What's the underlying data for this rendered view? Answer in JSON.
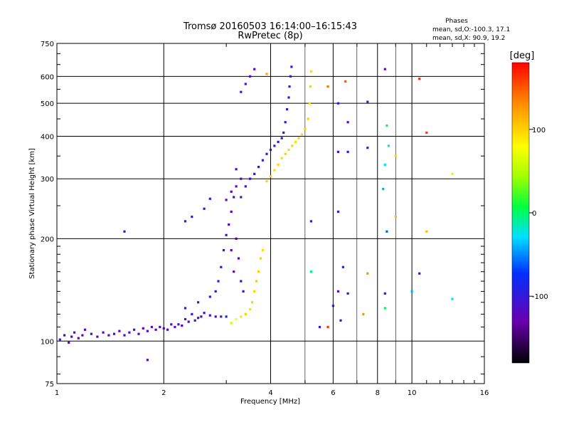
{
  "chart_data": {
    "type": "scatter",
    "title": "Tromsø 20160503 16:14:00–16:15:43",
    "subtitle": "RwPretec (8p)",
    "xlabel": "Frequency [MHz]",
    "ylabel": "Stationary phase Virtual Height [km]",
    "x_scale": "log",
    "y_scale": "log",
    "xlim": [
      1,
      16
    ],
    "ylim": [
      75,
      750
    ],
    "x_ticks": [
      1,
      2,
      4,
      6,
      8,
      10,
      16
    ],
    "x_tick_labels": [
      "1",
      "2",
      "4",
      "6",
      "8",
      "10",
      "16"
    ],
    "y_ticks": [
      75,
      100,
      200,
      300,
      400,
      500,
      600,
      750
    ],
    "y_tick_labels": [
      "75",
      "100",
      "200",
      "300",
      "400",
      "500",
      "600",
      "750"
    ],
    "grid": true,
    "legend": {
      "title": "Phases",
      "lines": [
        "mean, sd,O:-100.3, 17.1",
        "mean, sd,X: 90.9, 19.2"
      ],
      "placement": "top-right"
    },
    "colorbar": {
      "label": "[deg]",
      "range": [
        -180,
        180
      ],
      "ticks": [
        100,
        0,
        -100
      ],
      "tick_labels": [
        "100",
        "0",
        "-100"
      ]
    },
    "series": [
      {
        "name": "O",
        "mean_phase": -100.3,
        "points": [
          [
            1.02,
            101,
            -110
          ],
          [
            1.05,
            104,
            -120
          ],
          [
            1.08,
            99,
            -115
          ],
          [
            1.1,
            103,
            -125
          ],
          [
            1.12,
            106,
            -110
          ],
          [
            1.15,
            102,
            -130
          ],
          [
            1.18,
            104,
            -118
          ],
          [
            1.2,
            108,
            -120
          ],
          [
            1.25,
            105,
            -105
          ],
          [
            1.3,
            103,
            -122
          ],
          [
            1.35,
            106,
            -118
          ],
          [
            1.4,
            104,
            -120
          ],
          [
            1.45,
            105,
            -108
          ],
          [
            1.5,
            107,
            -125
          ],
          [
            1.55,
            104,
            -115
          ],
          [
            1.6,
            106,
            -120
          ],
          [
            1.65,
            108,
            -112
          ],
          [
            1.7,
            105,
            -122
          ],
          [
            1.75,
            109,
            -118
          ],
          [
            1.8,
            107,
            -100
          ],
          [
            1.85,
            110,
            -110
          ],
          [
            1.9,
            108,
            -120
          ],
          [
            1.95,
            110,
            -118
          ],
          [
            2.0,
            109,
            -125
          ],
          [
            2.05,
            108,
            -110
          ],
          [
            2.1,
            112,
            -105
          ],
          [
            2.15,
            110,
            -118
          ],
          [
            2.2,
            112,
            -100
          ],
          [
            2.25,
            111,
            -122
          ],
          [
            2.3,
            116,
            -110
          ],
          [
            2.35,
            114,
            -115
          ],
          [
            2.4,
            120,
            -95
          ],
          [
            2.45,
            115,
            -110
          ],
          [
            2.5,
            117,
            -105
          ],
          [
            2.55,
            118,
            -120
          ],
          [
            2.6,
            121,
            -100
          ],
          [
            2.7,
            119,
            -110
          ],
          [
            2.8,
            118,
            -105
          ],
          [
            2.9,
            118,
            -95
          ],
          [
            3.0,
            118,
            -90
          ],
          [
            2.3,
            125,
            -100
          ],
          [
            2.5,
            130,
            -95
          ],
          [
            2.7,
            135,
            -100
          ],
          [
            2.8,
            140,
            -105
          ],
          [
            2.85,
            150,
            -100
          ],
          [
            2.9,
            165,
            -95
          ],
          [
            2.95,
            185,
            -105
          ],
          [
            3.0,
            205,
            -115
          ],
          [
            3.05,
            220,
            -125
          ],
          [
            3.1,
            185,
            -120
          ],
          [
            3.15,
            160,
            -130
          ],
          [
            3.2,
            200,
            -135
          ],
          [
            3.25,
            175,
            -125
          ],
          [
            3.3,
            150,
            -110
          ],
          [
            3.35,
            140,
            -115
          ],
          [
            3.1,
            240,
            -120
          ],
          [
            3.0,
            260,
            -115
          ],
          [
            3.1,
            275,
            -120
          ],
          [
            3.2,
            285,
            -125
          ],
          [
            3.3,
            300,
            -120
          ],
          [
            3.2,
            320,
            -115
          ],
          [
            3.15,
            265,
            -118
          ],
          [
            3.3,
            265,
            -110
          ],
          [
            3.4,
            285,
            -110
          ],
          [
            3.5,
            300,
            -108
          ],
          [
            3.6,
            310,
            -105
          ],
          [
            3.7,
            325,
            -110
          ],
          [
            3.8,
            340,
            -105
          ],
          [
            3.9,
            355,
            -100
          ],
          [
            4.0,
            365,
            -105
          ],
          [
            4.1,
            375,
            -100
          ],
          [
            4.2,
            385,
            -95
          ],
          [
            4.3,
            395,
            -100
          ],
          [
            4.35,
            410,
            -105
          ],
          [
            4.4,
            440,
            -100
          ],
          [
            4.45,
            480,
            -100
          ],
          [
            4.5,
            520,
            -105
          ],
          [
            4.52,
            560,
            -100
          ],
          [
            4.55,
            600,
            -105
          ],
          [
            4.58,
            640,
            -110
          ],
          [
            2.3,
            225,
            -100
          ],
          [
            2.4,
            232,
            -105
          ],
          [
            2.6,
            245,
            -100
          ],
          [
            2.7,
            262,
            -95
          ],
          [
            3.3,
            540,
            -95
          ],
          [
            3.4,
            570,
            -110
          ],
          [
            3.5,
            600,
            -115
          ],
          [
            3.6,
            630,
            -120
          ],
          [
            1.8,
            88,
            -120
          ],
          [
            1.55,
            210,
            -110
          ]
        ]
      },
      {
        "name": "X",
        "mean_phase": 90.9,
        "points": [
          [
            3.1,
            113,
            60
          ],
          [
            3.2,
            116,
            80
          ],
          [
            3.3,
            118,
            90
          ],
          [
            3.4,
            120,
            100
          ],
          [
            3.5,
            124,
            95
          ],
          [
            3.55,
            130,
            100
          ],
          [
            3.6,
            140,
            100
          ],
          [
            3.65,
            150,
            105
          ],
          [
            3.7,
            160,
            100
          ],
          [
            3.75,
            175,
            100
          ],
          [
            3.8,
            185,
            95
          ],
          [
            3.9,
            295,
            100
          ],
          [
            4.0,
            305,
            100
          ],
          [
            4.1,
            318,
            95
          ],
          [
            4.2,
            330,
            100
          ],
          [
            4.3,
            345,
            95
          ],
          [
            4.4,
            355,
            100
          ],
          [
            4.5,
            365,
            98
          ],
          [
            4.6,
            375,
            100
          ],
          [
            4.7,
            385,
            95
          ],
          [
            4.8,
            395,
            100
          ],
          [
            4.9,
            405,
            95
          ],
          [
            5.0,
            420,
            100
          ],
          [
            5.1,
            450,
            100
          ],
          [
            5.15,
            500,
            95
          ],
          [
            5.18,
            560,
            100
          ],
          [
            5.2,
            620,
            95
          ]
        ]
      },
      {
        "name": "other",
        "points": [
          [
            3.9,
            610,
            120
          ],
          [
            5.8,
            560,
            140
          ],
          [
            6.5,
            580,
            150
          ],
          [
            7.5,
            505,
            -100
          ],
          [
            8.4,
            630,
            -110
          ],
          [
            10.5,
            590,
            170
          ],
          [
            6.2,
            500,
            -100
          ],
          [
            6.6,
            440,
            -110
          ],
          [
            8.5,
            430,
            10
          ],
          [
            11.0,
            410,
            160
          ],
          [
            8.6,
            375,
            -20
          ],
          [
            6.2,
            360,
            -110
          ],
          [
            6.6,
            360,
            -90
          ],
          [
            7.5,
            370,
            -90
          ],
          [
            9.0,
            350,
            100
          ],
          [
            8.4,
            330,
            -30
          ],
          [
            13.0,
            310,
            90
          ],
          [
            8.3,
            280,
            -40
          ],
          [
            6.2,
            240,
            -100
          ],
          [
            5.2,
            225,
            -100
          ],
          [
            9.0,
            232,
            110
          ],
          [
            8.5,
            210,
            -60
          ],
          [
            11.0,
            210,
            110
          ],
          [
            6.4,
            165,
            -90
          ],
          [
            5.2,
            160,
            -10
          ],
          [
            7.5,
            158,
            130
          ],
          [
            10.5,
            158,
            -110
          ],
          [
            6.2,
            140,
            -120
          ],
          [
            6.6,
            138,
            -100
          ],
          [
            8.4,
            138,
            -90
          ],
          [
            10.0,
            140,
            -40
          ],
          [
            13.0,
            133,
            -30
          ],
          [
            6.0,
            127,
            -110
          ],
          [
            8.4,
            125,
            0
          ],
          [
            7.3,
            120,
            130
          ],
          [
            5.5,
            110,
            -100
          ],
          [
            5.8,
            110,
            160
          ],
          [
            6.3,
            115,
            -90
          ]
        ]
      }
    ]
  }
}
